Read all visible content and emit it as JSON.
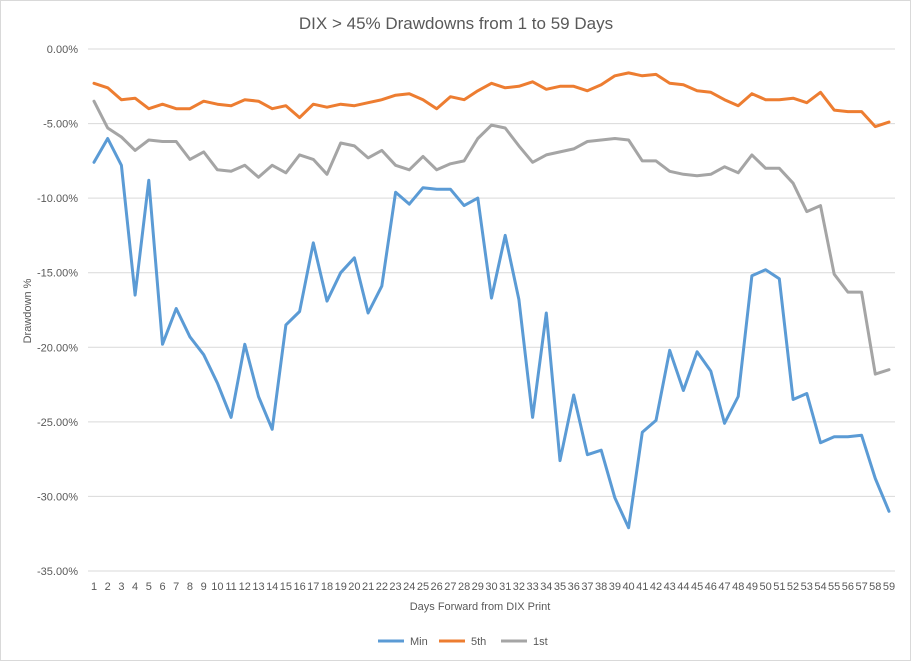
{
  "chart_data": {
    "type": "line",
    "title": "DIX > 45% Drawdowns from 1 to 59 Days",
    "xlabel": "Days Forward from  DIX Print",
    "ylabel": "Drawdown %",
    "ylim": [
      -35,
      0
    ],
    "ytick_values": [
      0,
      -5,
      -10,
      -15,
      -20,
      -25,
      -30,
      -35
    ],
    "ytick_labels": [
      "0.00%",
      "-5.00%",
      "-10.00%",
      "-15.00%",
      "-20.00%",
      "-25.00%",
      "-30.00%",
      "-35.00%"
    ],
    "grid": true,
    "legend_position": "bottom",
    "x": [
      1,
      2,
      3,
      4,
      5,
      6,
      7,
      8,
      9,
      10,
      11,
      12,
      13,
      14,
      15,
      16,
      17,
      18,
      19,
      20,
      21,
      22,
      23,
      24,
      25,
      26,
      27,
      28,
      29,
      30,
      31,
      32,
      33,
      34,
      35,
      36,
      37,
      38,
      39,
      40,
      41,
      42,
      43,
      44,
      45,
      46,
      47,
      48,
      49,
      50,
      51,
      52,
      53,
      54,
      55,
      56,
      57,
      58,
      59
    ],
    "series": [
      {
        "name": "Min",
        "color": "#5b9bd5",
        "values": [
          -7.6,
          -6.0,
          -7.8,
          -16.5,
          -8.8,
          -19.8,
          -17.4,
          -19.3,
          -20.5,
          -22.4,
          -24.7,
          -19.8,
          -23.3,
          -25.5,
          -18.5,
          -17.6,
          -13.0,
          -16.9,
          -15.0,
          -14.0,
          -17.7,
          -15.9,
          -9.6,
          -10.4,
          -9.3,
          -9.4,
          -9.4,
          -10.5,
          -10.0,
          -16.7,
          -12.5,
          -16.8,
          -24.7,
          -17.7,
          -27.6,
          -23.2,
          -27.2,
          -26.9,
          -30.1,
          -32.1,
          -25.7,
          -24.9,
          -20.2,
          -22.9,
          -20.3,
          -21.6,
          -25.1,
          -23.3,
          -15.2,
          -14.8,
          -15.4,
          -23.5,
          -23.1,
          -26.4,
          -26.0,
          -26.0,
          -25.9,
          -28.8,
          -31.0
        ]
      },
      {
        "name": "5th",
        "color": "#ed7d31",
        "values": [
          -2.3,
          -2.6,
          -3.4,
          -3.3,
          -4.0,
          -3.7,
          -4.0,
          -4.0,
          -3.5,
          -3.7,
          -3.8,
          -3.4,
          -3.5,
          -4.0,
          -3.8,
          -4.6,
          -3.7,
          -3.9,
          -3.7,
          -3.8,
          -3.6,
          -3.4,
          -3.1,
          -3.0,
          -3.4,
          -4.0,
          -3.2,
          -3.4,
          -2.8,
          -2.3,
          -2.6,
          -2.5,
          -2.2,
          -2.7,
          -2.5,
          -2.5,
          -2.8,
          -2.4,
          -1.8,
          -1.6,
          -1.8,
          -1.7,
          -2.3,
          -2.4,
          -2.8,
          -2.9,
          -3.4,
          -3.8,
          -3.0,
          -3.4,
          -3.4,
          -3.3,
          -3.6,
          -2.9,
          -4.1,
          -4.2,
          -4.2,
          -5.2,
          -4.9
        ]
      },
      {
        "name": "1st",
        "color": "#a5a5a5",
        "values": [
          -3.5,
          -5.3,
          -5.9,
          -6.8,
          -6.1,
          -6.2,
          -6.2,
          -7.4,
          -6.9,
          -8.1,
          -8.2,
          -7.8,
          -8.6,
          -7.8,
          -8.3,
          -7.1,
          -7.4,
          -8.4,
          -6.3,
          -6.5,
          -7.3,
          -6.8,
          -7.8,
          -8.1,
          -7.2,
          -8.1,
          -7.7,
          -7.5,
          -6.0,
          -5.1,
          -5.3,
          -6.5,
          -7.6,
          -7.1,
          -6.9,
          -6.7,
          -6.2,
          -6.1,
          -6.0,
          -6.1,
          -7.5,
          -7.5,
          -8.2,
          -8.4,
          -8.5,
          -8.4,
          -7.9,
          -8.3,
          -7.1,
          -8.0,
          -8.0,
          -9.0,
          -10.9,
          -10.5,
          -15.1,
          -16.3,
          -16.3,
          -21.8,
          -21.5
        ]
      }
    ]
  }
}
